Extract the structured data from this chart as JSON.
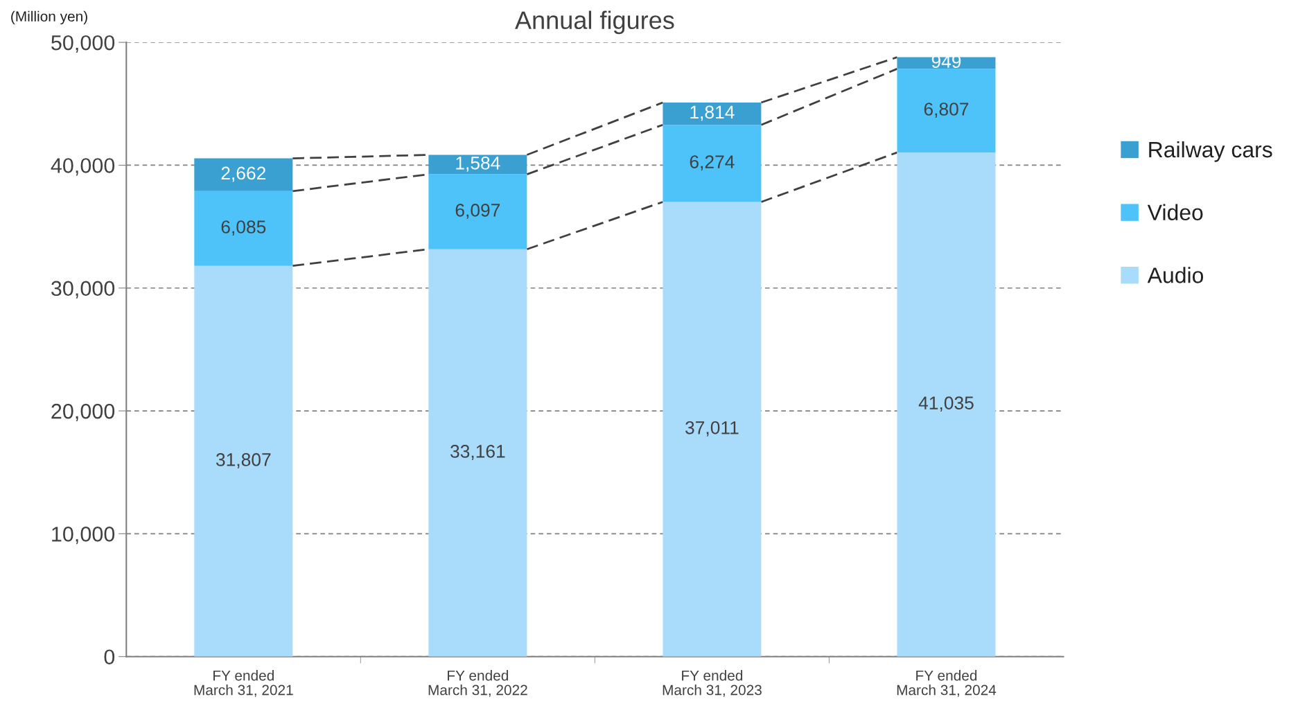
{
  "chart_data": {
    "type": "bar",
    "title": "Annual figures",
    "ylabel": "(Million yen)",
    "stacked": true,
    "categories": [
      "FY ended\nMarch 31, 2021",
      "FY ended\nMarch 31, 2022",
      "FY ended\nMarch 31, 2023",
      "FY ended\nMarch 31, 2024"
    ],
    "series": [
      {
        "name": "Audio",
        "color": "#a9dbfb",
        "values": [
          31807,
          33161,
          37011,
          41035
        ],
        "value_labels": [
          "31,807",
          "33,161",
          "37,011",
          "41,035"
        ]
      },
      {
        "name": "Video",
        "color": "#4dc3fa",
        "values": [
          6085,
          6097,
          6274,
          6807
        ],
        "value_labels": [
          "6,085",
          "6,097",
          "6,274",
          "6,807"
        ]
      },
      {
        "name": "Railway cars",
        "color": "#3a9fd1",
        "values": [
          2662,
          1584,
          1814,
          949
        ],
        "value_labels": [
          "2,662",
          "1,584",
          "1,814",
          "949"
        ]
      }
    ],
    "ylim": [
      0,
      50000
    ],
    "yticks": [
      {
        "value": 0,
        "label": "0"
      },
      {
        "value": 10000,
        "label": "10,000"
      },
      {
        "value": 20000,
        "label": "20,000"
      },
      {
        "value": 30000,
        "label": "30,000"
      },
      {
        "value": 40000,
        "label": "40,000"
      },
      {
        "value": 50000,
        "label": "50,000"
      }
    ],
    "grid": "y",
    "legend": "right"
  }
}
